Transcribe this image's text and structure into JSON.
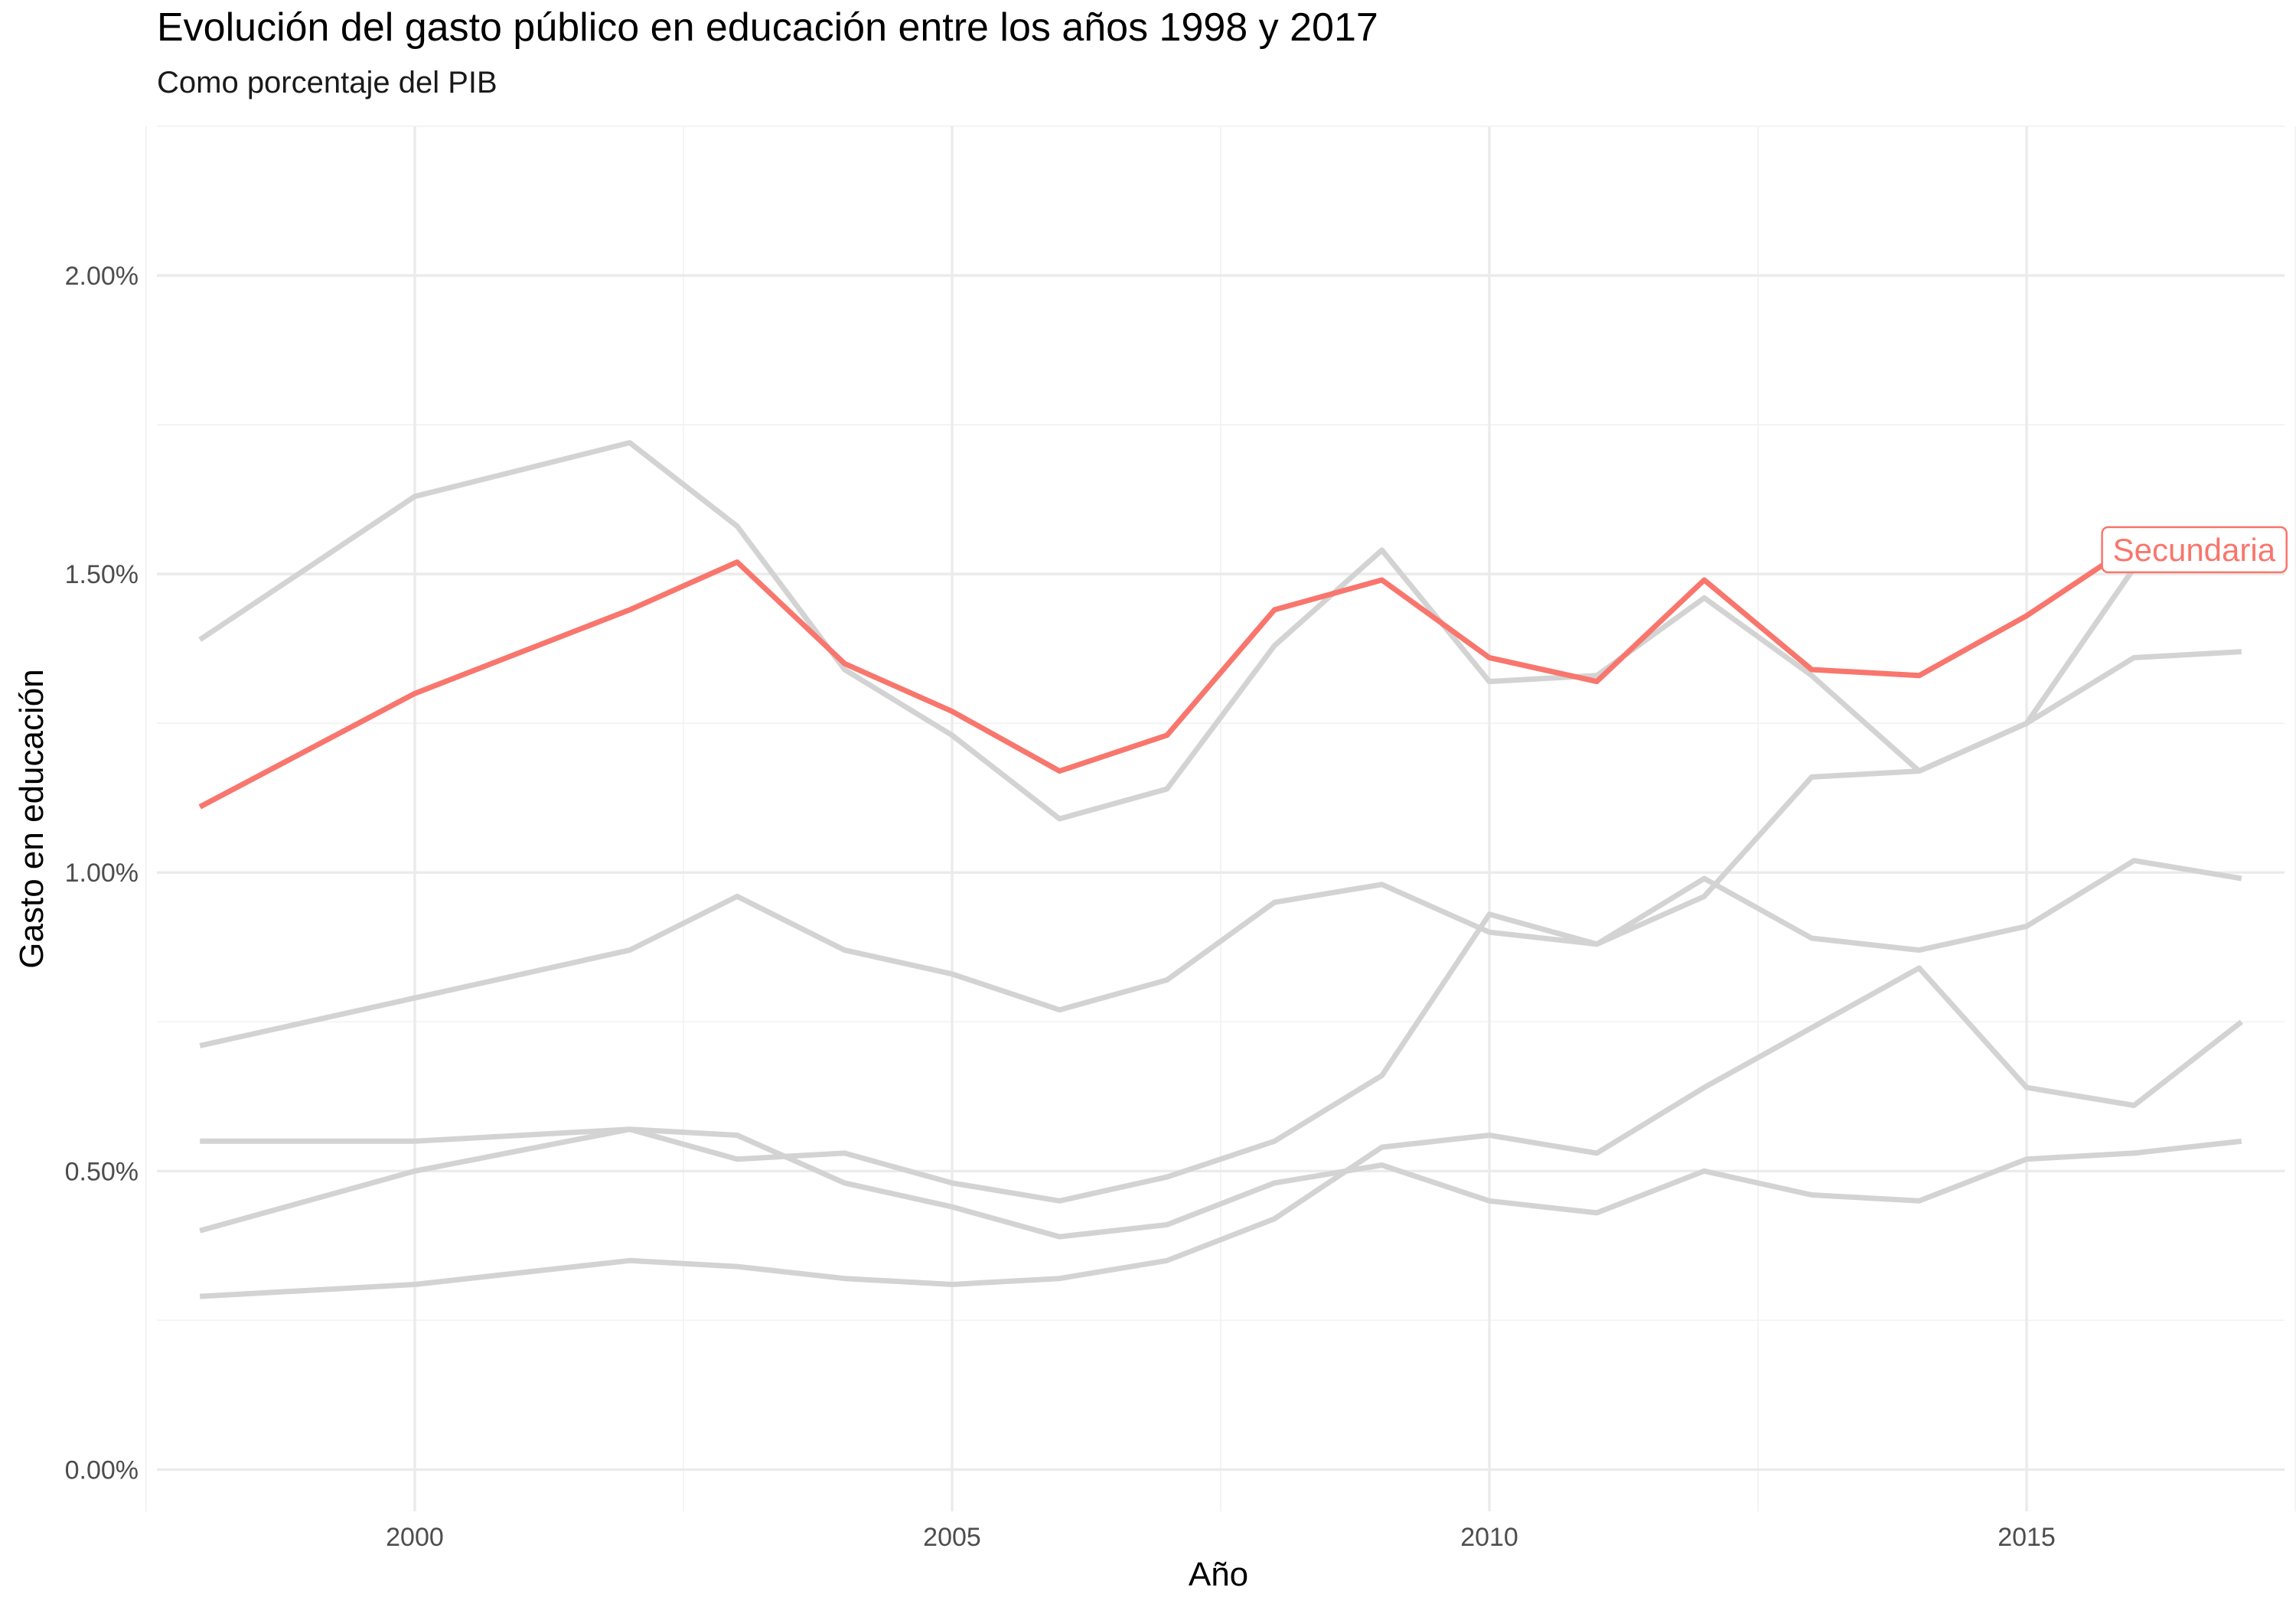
{
  "title": "Evolución del gasto público en educación entre los años 1998 y 2017",
  "subtitle": "Como porcentaje del PIB",
  "chart_data": {
    "type": "line",
    "title": "Evolución del gasto público en educación entre los años 1998 y 2017",
    "subtitle": "Como porcentaje del PIB",
    "xlabel": "Año",
    "ylabel": "Gasto en educación",
    "x": [
      1998,
      2000,
      2002,
      2003,
      2004,
      2005,
      2006,
      2007,
      2008,
      2009,
      2010,
      2011,
      2012,
      2013,
      2014,
      2015,
      2016,
      2017
    ],
    "xlim": [
      1997.6,
      2017.4
    ],
    "ylim": [
      -0.07,
      2.25
    ],
    "x_ticks": [
      2000,
      2005,
      2010,
      2015
    ],
    "y_ticks": [
      0,
      0.5,
      1.0,
      1.5,
      2.0
    ],
    "y_tick_labels": [
      "0.00%",
      "0.50%",
      "1.00%",
      "1.50%",
      "2.00%"
    ],
    "grid": true,
    "highlight_color": "#F8766D",
    "muted_color": "#d3d3d3",
    "series": [
      {
        "highlight": false,
        "values": [
          1.39,
          1.63,
          1.72,
          1.58,
          1.34,
          1.23,
          1.09,
          1.14,
          1.38,
          1.54,
          1.32,
          1.33,
          1.46,
          1.33,
          1.17,
          1.25,
          1.51,
          1.51
        ]
      },
      {
        "highlight": false,
        "values": [
          null,
          null,
          null,
          null,
          null,
          null,
          null,
          null,
          null,
          null,
          null,
          null,
          null,
          null,
          1.17,
          1.25,
          1.36,
          1.37
        ]
      },
      {
        "highlight": false,
        "values": [
          0.71,
          0.79,
          0.87,
          0.96,
          0.87,
          0.83,
          0.77,
          0.82,
          0.95,
          0.98,
          0.9,
          0.88,
          0.99,
          0.89,
          0.87,
          0.91,
          1.02,
          0.99
        ]
      },
      {
        "highlight": false,
        "values": [
          0.55,
          0.55,
          0.57,
          0.52,
          0.53,
          0.48,
          0.45,
          0.49,
          0.55,
          0.66,
          0.93,
          0.88,
          0.96,
          1.16,
          1.17,
          1.25,
          1.51,
          1.51
        ]
      },
      {
        "highlight": false,
        "values": [
          0.4,
          0.5,
          0.57,
          0.56,
          0.48,
          0.44,
          0.39,
          0.41,
          0.48,
          0.51,
          0.45,
          0.43,
          0.5,
          0.46,
          0.45,
          0.52,
          0.53,
          0.55
        ]
      },
      {
        "highlight": false,
        "values": [
          0.29,
          0.31,
          0.35,
          0.34,
          0.32,
          0.31,
          0.32,
          0.35,
          0.42,
          0.54,
          0.56,
          0.53,
          0.64,
          0.74,
          0.84,
          0.64,
          0.61,
          0.75
        ]
      },
      {
        "name": "Secundaria",
        "highlight": true,
        "values": [
          1.11,
          1.3,
          1.44,
          1.52,
          1.35,
          1.27,
          1.17,
          1.23,
          1.44,
          1.49,
          1.36,
          1.32,
          1.49,
          1.34,
          1.33,
          1.43,
          1.55,
          1.54
        ]
      }
    ]
  }
}
